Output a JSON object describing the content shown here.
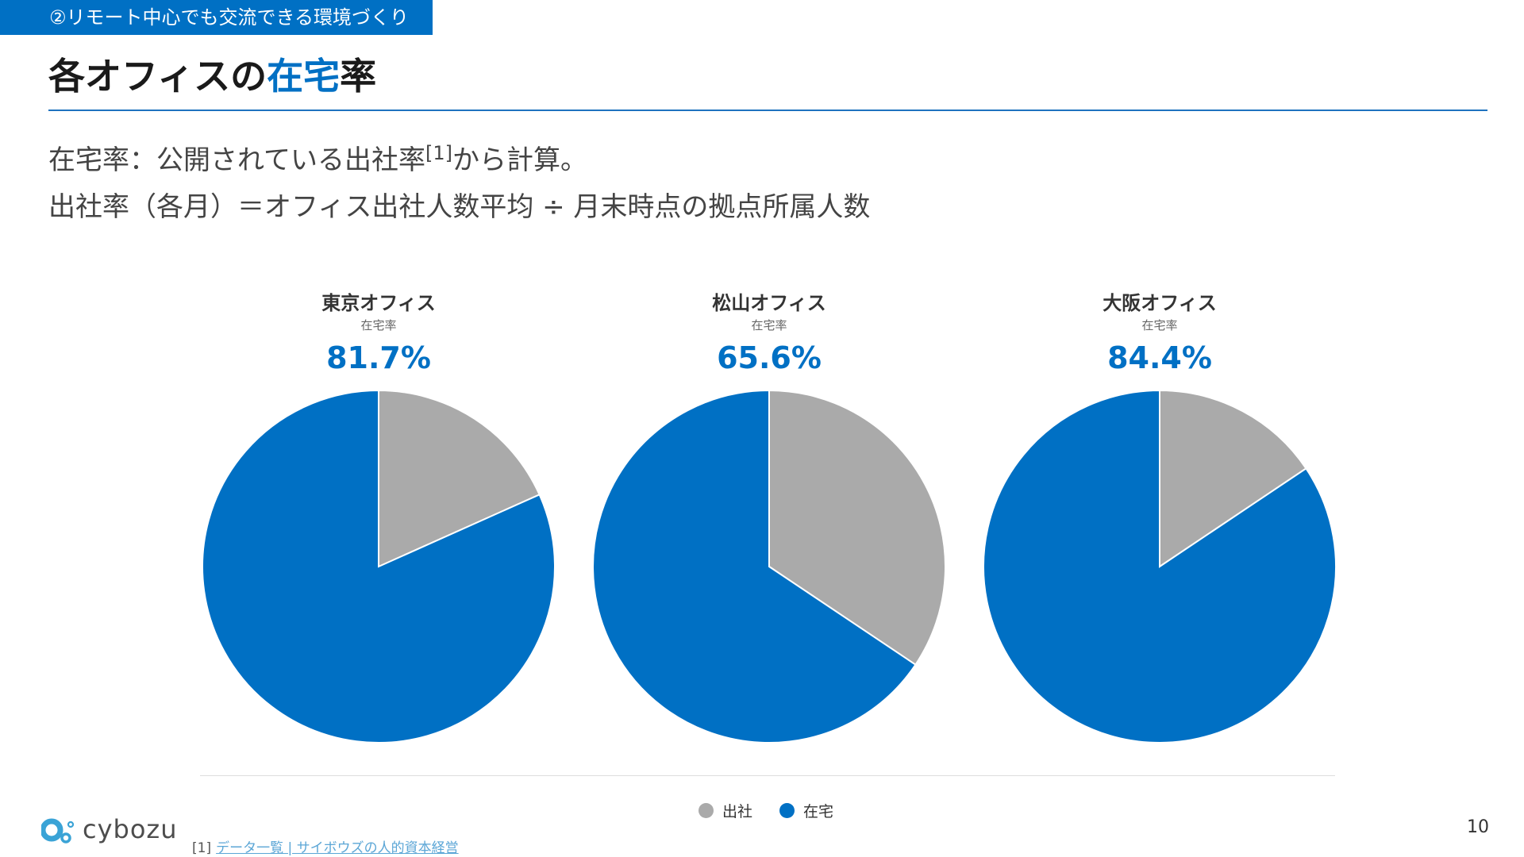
{
  "header": {
    "section_tag": "②リモート中心でも交流できる環境づくり",
    "title_prefix": "各オフィスの",
    "title_highlight": "在宅",
    "title_suffix": "率"
  },
  "definition": {
    "line1_before": "在宅率：公開されている出社率",
    "line1_ref": "[1]",
    "line1_after": "から計算。",
    "line2": "出社率（各月）＝オフィス出社人数平均 ÷ 月末時点の拠点所属人数"
  },
  "offices": [
    {
      "name": "東京オフィス",
      "sub": "在宅率",
      "value_label": "81.7%"
    },
    {
      "name": "松山オフィス",
      "sub": "在宅率",
      "value_label": "65.6%"
    },
    {
      "name": "大阪オフィス",
      "sub": "在宅率",
      "value_label": "84.4%"
    }
  ],
  "chart_data": [
    {
      "type": "pie",
      "title": "東京オフィス",
      "labels": [
        "出社",
        "在宅"
      ],
      "values": [
        18.3,
        81.7
      ],
      "colors": [
        "#AAAAAA",
        "#0070C4"
      ]
    },
    {
      "type": "pie",
      "title": "松山オフィス",
      "labels": [
        "出社",
        "在宅"
      ],
      "values": [
        34.4,
        65.6
      ],
      "colors": [
        "#AAAAAA",
        "#0070C4"
      ]
    },
    {
      "type": "pie",
      "title": "大阪オフィス",
      "labels": [
        "出社",
        "在宅"
      ],
      "values": [
        15.6,
        84.4
      ],
      "colors": [
        "#AAAAAA",
        "#0070C4"
      ]
    }
  ],
  "legend": [
    {
      "label": "出社",
      "color": "#AAAAAA"
    },
    {
      "label": "在宅",
      "color": "#0070C4"
    }
  ],
  "footer": {
    "logo_text": "cybozu",
    "footnote_ref": "[1]",
    "footnote_link": "データ一覧 | サイボウズの人的資本経営",
    "page_number": "10"
  }
}
